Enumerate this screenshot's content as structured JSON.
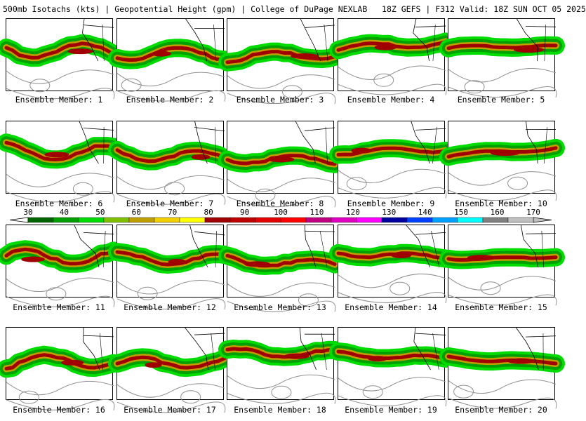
{
  "header": {
    "text": "500mb Isotachs (kts) | Geopotential Height (gpm) | College of DuPage NEXLAB   18Z GEFS | F312 Valid: 18Z SUN OCT 05 2025"
  },
  "panels": [
    {
      "label": "Ensemble Member: 1"
    },
    {
      "label": "Ensemble Member: 2"
    },
    {
      "label": "Ensemble Member: 3"
    },
    {
      "label": "Ensemble Member: 4"
    },
    {
      "label": "Ensemble Member: 5"
    },
    {
      "label": "Ensemble Member: 6"
    },
    {
      "label": "Ensemble Member: 7"
    },
    {
      "label": "Ensemble Member: 8"
    },
    {
      "label": "Ensemble Member: 9"
    },
    {
      "label": "Ensemble Member: 10"
    },
    {
      "label": "Ensemble Member: 11"
    },
    {
      "label": "Ensemble Member: 12"
    },
    {
      "label": "Ensemble Member: 13"
    },
    {
      "label": "Ensemble Member: 14"
    },
    {
      "label": "Ensemble Member: 15"
    },
    {
      "label": "Ensemble Member: 16"
    },
    {
      "label": "Ensemble Member: 17"
    },
    {
      "label": "Ensemble Member: 18"
    },
    {
      "label": "Ensemble Member: 19"
    },
    {
      "label": "Ensemble Member: 20"
    }
  ],
  "colorbar": {
    "ticks": [
      "30",
      "40",
      "50",
      "60",
      "70",
      "80",
      "90",
      "100",
      "110",
      "120",
      "130",
      "140",
      "150",
      "160",
      "170"
    ],
    "colors": [
      "#006400",
      "#00a000",
      "#00dc00",
      "#80c000",
      "#c0a000",
      "#f0d000",
      "#ffff00",
      "#a00000",
      "#c00000",
      "#e00000",
      "#ff0000",
      "#c00080",
      "#e000c0",
      "#ff00ff",
      "#0000a0",
      "#0040ff",
      "#00a0ff",
      "#00ffff",
      "#808080",
      "#c0c0c0"
    ]
  },
  "map_colors": {
    "jet_core": "#a00000",
    "jet_mid": "#c0a000",
    "jet_outer": "#00a000",
    "jet_edge": "#00dc00",
    "height_contour": "#909090",
    "boundaries": "#000000"
  }
}
